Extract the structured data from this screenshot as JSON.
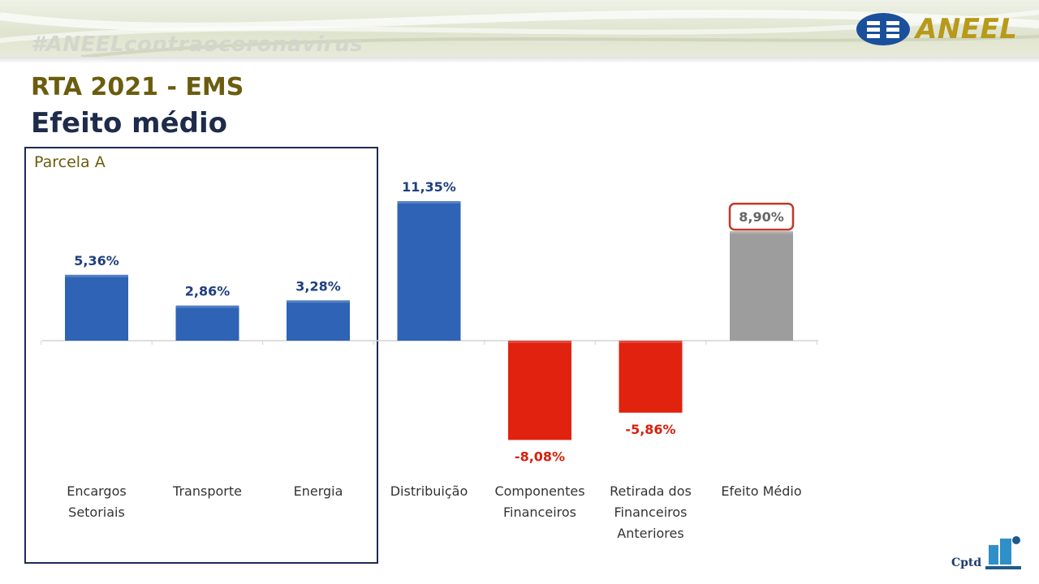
{
  "header": {
    "hashtag": "#ANEELcontraocoronavirus",
    "logo_text": "ANEEL"
  },
  "title": "RTA 2021 - EMS",
  "subtitle": "Efeito médio",
  "group_label": "Parcela A",
  "footer_logo_text": "Cptd",
  "chart_data": {
    "type": "bar",
    "categories": [
      [
        "Encargos",
        "Setoriais"
      ],
      [
        "Transporte"
      ],
      [
        "Energia"
      ],
      [
        "Distribuição"
      ],
      [
        "Componentes",
        "Financeiros"
      ],
      [
        "Retirada dos",
        "Financeiros",
        "Anteriores"
      ],
      [
        "Efeito Médio"
      ]
    ],
    "values": [
      5.36,
      2.86,
      3.28,
      11.35,
      -8.08,
      -5.86,
      8.9
    ],
    "value_labels": [
      "5,36%",
      "2,86%",
      "3,28%",
      "11,35%",
      "-8,08%",
      "-5,86%",
      "8,90%"
    ],
    "bar_colors": [
      "#2e63b5",
      "#2e63b5",
      "#2e63b5",
      "#2e63b5",
      "#e0220e",
      "#e0220e",
      "#9d9d9d"
    ],
    "label_colors": [
      "#1f3f80",
      "#1f3f80",
      "#1f3f80",
      "#1f3f80",
      "#d8200c",
      "#d8200c",
      "#666666"
    ],
    "highlight_index": 6,
    "highlight_border_color": "#c0392b",
    "grouped_categories": [
      0,
      1,
      2
    ],
    "ylim": [
      -8.08,
      11.35
    ],
    "grid": false
  }
}
